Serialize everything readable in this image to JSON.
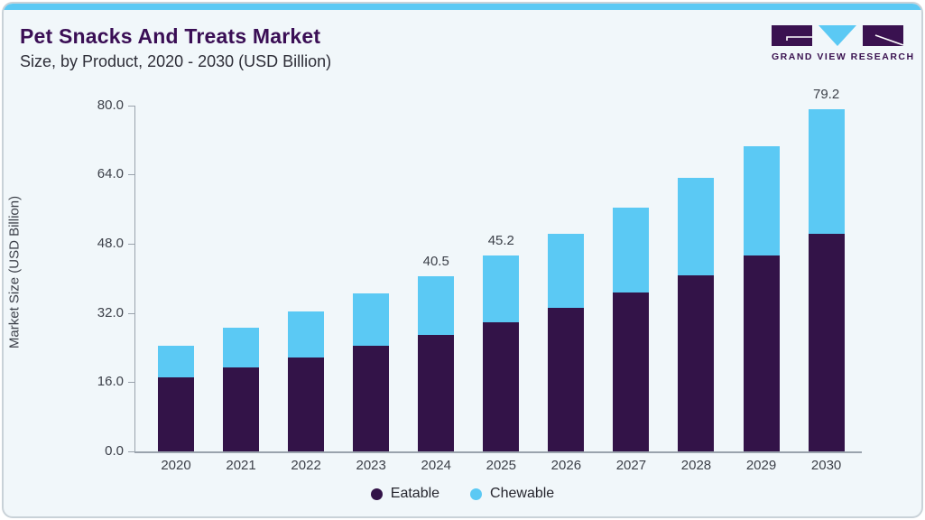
{
  "header": {
    "title": "Pet Snacks And Treats Market",
    "subtitle": "Size, by Product, 2020 - 2030 (USD Billion)",
    "logo_text": "GRAND VIEW RESEARCH"
  },
  "colors": {
    "accent_blue": "#5BC9F4",
    "brand_purple": "#3A1250",
    "title_purple": "#3A0E55",
    "card_background": "#F1F7FA",
    "axis_gray": "#9AA3AD",
    "text_dark": "#3C4049"
  },
  "chart_data": {
    "type": "bar",
    "stacked": true,
    "title": "Pet Snacks And Treats Market Size, by Product, 2020 - 2030 (USD Billion)",
    "xlabel": "",
    "ylabel": "Market Size (USD Billion)",
    "ylim": [
      0,
      80
    ],
    "grid": false,
    "legend_position": "bottom",
    "ytick_labels": [
      "0.0",
      "16.0",
      "32.0",
      "48.0",
      "64.0",
      "80.0"
    ],
    "yticks": [
      0,
      16,
      32,
      48,
      64,
      80
    ],
    "categories": [
      "2020",
      "2021",
      "2022",
      "2023",
      "2024",
      "2025",
      "2026",
      "2027",
      "2028",
      "2029",
      "2030"
    ],
    "series": [
      {
        "name": "Eatable",
        "color": "#331348",
        "values": [
          17.1,
          19.4,
          21.8,
          24.5,
          27.0,
          29.8,
          33.1,
          36.7,
          40.8,
          45.2,
          50.4
        ]
      },
      {
        "name": "Chewable",
        "color": "#5BC9F4",
        "values": [
          7.3,
          9.2,
          10.5,
          12.1,
          13.5,
          15.4,
          17.3,
          19.7,
          22.4,
          25.4,
          28.8
        ]
      }
    ],
    "totals": [
      24.4,
      28.6,
      32.3,
      36.6,
      40.5,
      45.2,
      50.4,
      56.4,
      63.2,
      70.6,
      79.2
    ],
    "total_labels_shown": [
      "",
      "",
      "",
      "",
      "40.5",
      "45.2",
      "",
      "",
      "",
      "",
      "79.2"
    ]
  }
}
